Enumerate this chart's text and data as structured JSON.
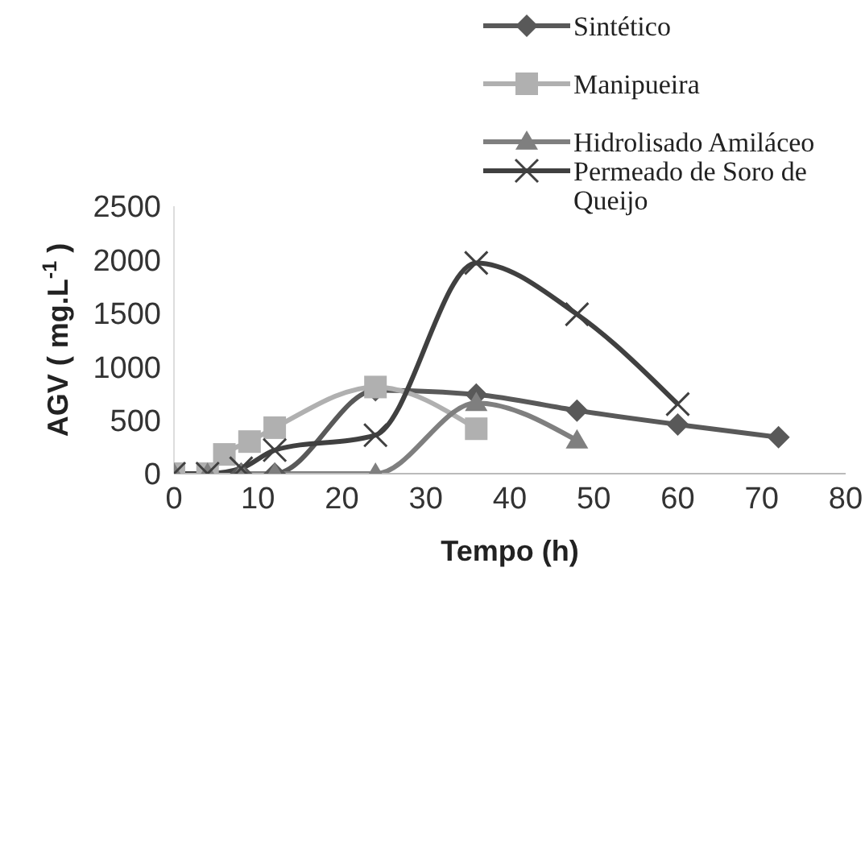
{
  "chart_data": {
    "type": "line",
    "xlabel": "Tempo (h)",
    "ylabel": "AGV ( mg.L$^{-1}$ )",
    "xlim": [
      0,
      80
    ],
    "xticks": [
      0,
      10,
      20,
      30,
      40,
      50,
      60,
      70,
      80
    ],
    "ylim": [
      0,
      2500
    ],
    "yticks": [
      0,
      500,
      1000,
      1500,
      2000,
      2500
    ],
    "grid": false,
    "legend": "top right",
    "line_style": "solid",
    "series": [
      {
        "name": "Sintético",
        "color": "#595959",
        "marker": "diamond",
        "x": [
          0,
          4,
          8,
          12,
          24,
          36,
          48,
          60,
          72
        ],
        "values": [
          0,
          0,
          0,
          0,
          780,
          740,
          590,
          460,
          340
        ]
      },
      {
        "name": "Manipueira",
        "color": "#b0b0b0",
        "marker": "square",
        "x": [
          0,
          4,
          6,
          9,
          12,
          24,
          36
        ],
        "values": [
          0,
          0,
          180,
          300,
          430,
          810,
          420
        ]
      },
      {
        "name": "Hidrolisado Amiláceo",
        "color": "#7f7f7f",
        "marker": "triangle",
        "x": [
          0,
          4,
          8,
          12,
          24,
          36,
          48
        ],
        "values": [
          0,
          0,
          0,
          0,
          0,
          660,
          310
        ]
      },
      {
        "name": "Permeado de Soro de Queijo",
        "color": "#404040",
        "marker": "cross",
        "x": [
          0,
          4,
          8,
          12,
          24,
          36,
          48,
          60
        ],
        "values": [
          0,
          0,
          50,
          220,
          360,
          1970,
          1490,
          650
        ]
      }
    ]
  }
}
